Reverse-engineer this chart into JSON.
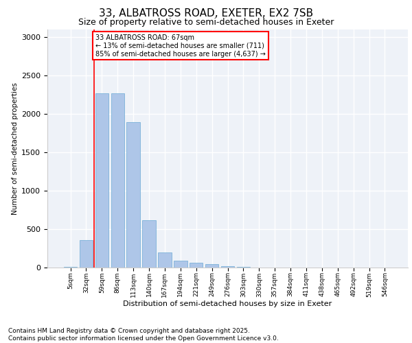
{
  "title_line1": "33, ALBATROSS ROAD, EXETER, EX2 7SB",
  "title_line2": "Size of property relative to semi-detached houses in Exeter",
  "xlabel": "Distribution of semi-detached houses by size in Exeter",
  "ylabel": "Number of semi-detached properties",
  "categories": [
    "5sqm",
    "32sqm",
    "59sqm",
    "86sqm",
    "113sqm",
    "140sqm",
    "167sqm",
    "194sqm",
    "221sqm",
    "249sqm",
    "276sqm",
    "303sqm",
    "330sqm",
    "357sqm",
    "384sqm",
    "411sqm",
    "438sqm",
    "465sqm",
    "492sqm",
    "519sqm",
    "546sqm"
  ],
  "values": [
    10,
    355,
    2270,
    2270,
    1890,
    620,
    200,
    90,
    65,
    45,
    20,
    5,
    0,
    0,
    0,
    0,
    0,
    0,
    0,
    0,
    0
  ],
  "bar_color": "#aec6e8",
  "bar_edge_color": "#6aaad4",
  "vline_color": "red",
  "vline_x": 1.5,
  "annotation_text": "33 ALBATROSS ROAD: 67sqm\n← 13% of semi-detached houses are smaller (711)\n85% of semi-detached houses are larger (4,637) →",
  "annotation_box_color": "white",
  "annotation_box_edge": "red",
  "background_color": "#eef2f8",
  "grid_color": "white",
  "ylim": [
    0,
    3100
  ],
  "yticks": [
    0,
    500,
    1000,
    1500,
    2000,
    2500,
    3000
  ],
  "footnote": "Contains HM Land Registry data © Crown copyright and database right 2025.\nContains public sector information licensed under the Open Government Licence v3.0.",
  "title_fontsize": 11,
  "subtitle_fontsize": 9,
  "footnote_fontsize": 6.5
}
